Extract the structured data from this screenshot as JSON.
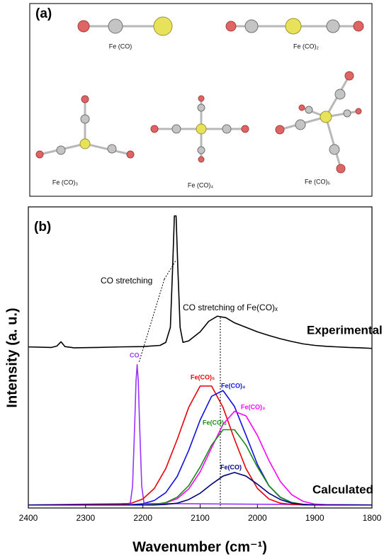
{
  "panel_a": {
    "label": "(a)",
    "molecules": [
      "Fe (CO)",
      "Fe (CO)₂",
      "Fe (CO)₃",
      "Fe (CO)₄",
      "Fe (CO)₅"
    ]
  },
  "chart_data": {
    "type": "line",
    "panel_label": "(b)",
    "x_label": "Wavenumber (cm⁻¹)",
    "y_label": "Intensity (a. u.)",
    "annotations": [
      "CO stretching",
      "CO stretching of Fe(CO)ₓ",
      "Calculated"
    ],
    "xlim": [
      2400,
      1800
    ],
    "xticks": [
      2400,
      2300,
      2200,
      2100,
      2000,
      1900,
      1800
    ],
    "ylim": [
      0,
      100
    ],
    "series": [
      {
        "name": "Experimental",
        "color": "#000000",
        "x": [
          2400,
          2360,
          2350,
          2343,
          2336,
          2320,
          2280,
          2240,
          2200,
          2170,
          2160,
          2152,
          2148,
          2145,
          2142,
          2139,
          2135,
          2130,
          2120,
          2100,
          2085,
          2070,
          2055,
          2040,
          2020,
          2000,
          1980,
          1960,
          1940,
          1920,
          1900,
          1880,
          1860,
          1840,
          1820,
          1800
        ],
        "values": [
          53.5,
          53.3,
          53.8,
          55.2,
          53.6,
          53.2,
          53.3,
          53.5,
          53.6,
          54.0,
          55.0,
          60,
          80,
          97,
          97,
          80,
          60,
          55,
          55.5,
          58.5,
          62,
          63.7,
          63.2,
          61.5,
          60,
          58.5,
          57.3,
          56.2,
          55.3,
          54.5,
          54,
          53.7,
          53.5,
          53.3,
          53.2,
          53.0
        ]
      },
      {
        "name": "CO",
        "color": "#9933ff",
        "x": [
          2400,
          2222,
          2218,
          2214,
          2212,
          2210,
          2208,
          2206,
          2202,
          2198,
          1800
        ],
        "values": [
          1,
          1.5,
          7.3,
          29.3,
          42.1,
          47.6,
          42.1,
          29.3,
          7.3,
          1.5,
          1
        ]
      },
      {
        "name": "Fe(CO)₅",
        "color": "#e8000b",
        "x": [
          2400,
          2240,
          2220,
          2200,
          2180,
          2160,
          2140,
          2120,
          2100,
          2080,
          2060,
          2040,
          2020,
          2000,
          1980,
          1960,
          1940,
          1920,
          1900,
          1880,
          1800
        ],
        "values": [
          1,
          1.2,
          1.6,
          3.0,
          6.5,
          13.1,
          22.8,
          33.4,
          40.5,
          40.5,
          33.4,
          22.8,
          13.1,
          6.5,
          3.0,
          1.6,
          1.2,
          1,
          1,
          1,
          1
        ]
      },
      {
        "name": "Fe(CO)₄",
        "color": "#1010e0",
        "x": [
          2400,
          2240,
          2220,
          2200,
          2180,
          2160,
          2140,
          2120,
          2100,
          2080,
          2060,
          2040,
          2020,
          2000,
          1980,
          1960,
          1940,
          1920,
          1900,
          1880,
          1800
        ],
        "values": [
          1,
          1,
          1.1,
          1.4,
          2.5,
          5.1,
          10.5,
          19.1,
          29.2,
          37.1,
          39.0,
          33.7,
          24.2,
          14.5,
          7.4,
          3.5,
          1.8,
          1.2,
          1.0,
          1,
          1
        ]
      },
      {
        "name": "Fe(CO)₃",
        "color": "#ff00ff",
        "x": [
          2400,
          2240,
          2220,
          2200,
          2180,
          2160,
          2140,
          2120,
          2100,
          2080,
          2060,
          2040,
          2020,
          2000,
          1980,
          1960,
          1940,
          1920,
          1900,
          1880,
          1800
        ],
        "values": [
          1,
          1,
          1,
          1.0,
          1.2,
          1.7,
          3.1,
          6.3,
          12.0,
          20.0,
          27.8,
          32.1,
          30.6,
          24.1,
          15.8,
          8.8,
          4.4,
          2.2,
          1.3,
          1.1,
          1
        ]
      },
      {
        "name": "Fe(CO)₂",
        "color": "#1a8a1a",
        "x": [
          2400,
          2240,
          2220,
          2200,
          2180,
          2160,
          2140,
          2120,
          2100,
          2080,
          2060,
          2040,
          2020,
          2000,
          1980,
          1960,
          1940,
          1920,
          1900,
          1880,
          1800
        ],
        "values": [
          1,
          1,
          1,
          1.0,
          1.2,
          1.8,
          3.6,
          7.4,
          13.6,
          20.9,
          26.0,
          26.0,
          20.9,
          13.6,
          7.4,
          3.6,
          1.8,
          1.2,
          1.0,
          1,
          1
        ]
      },
      {
        "name": "Fe(CO)",
        "color": "#000080",
        "x": [
          2400,
          2240,
          2220,
          2200,
          2180,
          2160,
          2140,
          2120,
          2100,
          2080,
          2060,
          2040,
          2020,
          2000,
          1980,
          1960,
          1940,
          1920,
          1900,
          1880,
          1800
        ],
        "values": [
          1,
          1,
          1,
          1,
          1.0,
          1.2,
          1.6,
          2.8,
          4.9,
          7.9,
          10.6,
          11.8,
          10.6,
          7.9,
          4.9,
          2.8,
          1.6,
          1.2,
          1.0,
          1,
          1
        ]
      }
    ]
  }
}
